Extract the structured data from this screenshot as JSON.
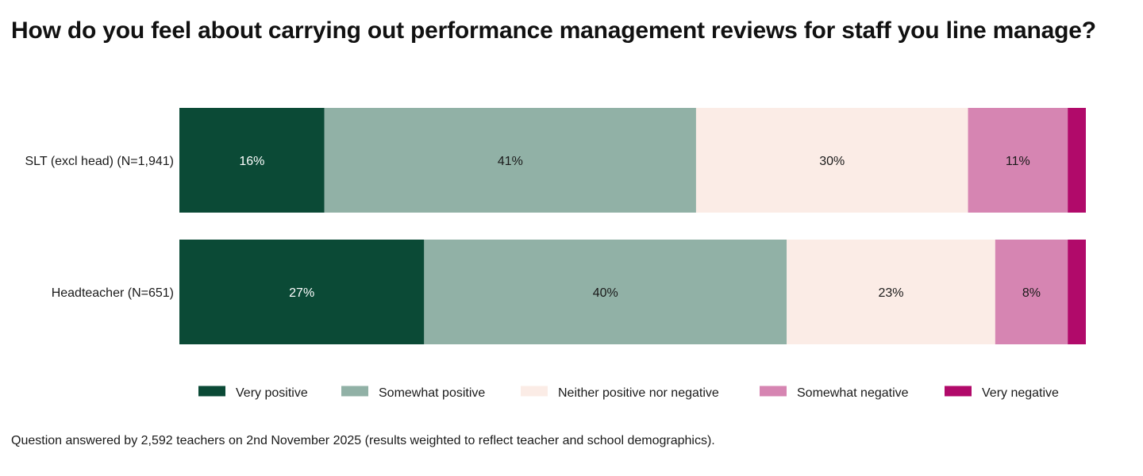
{
  "chart_data": {
    "type": "bar",
    "orientation": "horizontal",
    "stacked": true,
    "percent": true,
    "title": "How do you feel about carrying out performance management reviews for staff you line manage?",
    "categories": [
      "SLT (excl head) (N=1,941)",
      "Headteacher (N=651)"
    ],
    "series": [
      {
        "name": "Very positive",
        "values": [
          16,
          27
        ],
        "labels": [
          "16%",
          "27%"
        ],
        "color": "#0b4a36",
        "label_color": "#ffffff"
      },
      {
        "name": "Somewhat positive",
        "values": [
          41,
          40
        ],
        "labels": [
          "41%",
          "40%"
        ],
        "color": "#91b1a6",
        "label_color": "#1a1a1a"
      },
      {
        "name": "Neither positive nor negative",
        "values": [
          30,
          23
        ],
        "labels": [
          "30%",
          "23%"
        ],
        "color": "#fbece6",
        "label_color": "#1a1a1a"
      },
      {
        "name": "Somewhat negative",
        "values": [
          11,
          8
        ],
        "labels": [
          "11%",
          "8%"
        ],
        "color": "#d685b2",
        "label_color": "#1a1a1a"
      },
      {
        "name": "Very negative",
        "values": [
          2,
          2
        ],
        "labels": [
          "",
          ""
        ],
        "color": "#b10a6a",
        "label_color": "#ffffff"
      }
    ],
    "xlim": [
      0,
      100
    ],
    "legend_position": "bottom"
  },
  "footnote": "Question answered by 2,592 teachers on 2nd November 2025 (results weighted to reflect teacher and school demographics)."
}
